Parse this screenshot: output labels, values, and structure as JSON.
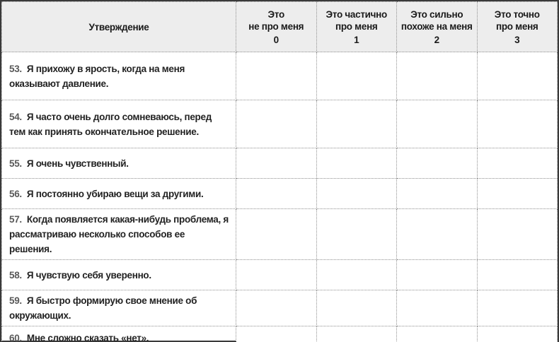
{
  "theme": {
    "frame_border": "#3a3a3a",
    "cell_border": "#8f8f8f",
    "header_bg": "#ededed",
    "header_text": "#1a1a1a",
    "statement_text": "#222222",
    "number_text": "#595959"
  },
  "table": {
    "header": {
      "statement_label": "Утверждение",
      "options": [
        {
          "label": "Это\nне про меня",
          "value": "0"
        },
        {
          "label": "Это частично\nпро меня",
          "value": "1"
        },
        {
          "label": "Это сильно\nпохоже на меня",
          "value": "2"
        },
        {
          "label": "Это точно\nпро меня",
          "value": "3"
        }
      ]
    },
    "rows": [
      {
        "number": "53.",
        "text": "Я прихожу в ярость, когда на меня оказывают давление."
      },
      {
        "number": "54.",
        "text": "Я часто очень долго сомневаюсь, перед тем как принять окончательное решение."
      },
      {
        "number": "55.",
        "text": "Я очень чувственный."
      },
      {
        "number": "56.",
        "text": "Я постоянно убираю вещи за другими."
      },
      {
        "number": "57.",
        "text": "Когда появляется какая-нибудь проблема, я рассматриваю несколько способов ее решения."
      },
      {
        "number": "58.",
        "text": "Я чувствую себя уверенно."
      },
      {
        "number": "59.",
        "text": "Я быстро формирую свое мнение об окружающих."
      },
      {
        "number": "60.",
        "text": "Мне сложно сказать «нет»."
      }
    ]
  }
}
